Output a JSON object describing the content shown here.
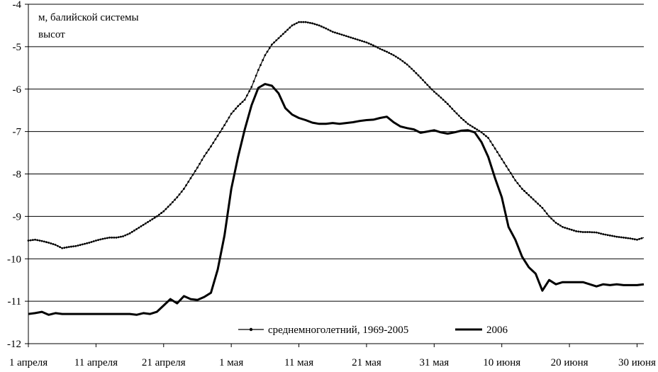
{
  "chart_data": {
    "type": "line",
    "ylabel": "м, балийской системы высот",
    "ylabel_lines": [
      "м, балийской системы",
      "высот"
    ],
    "ylim": [
      -12,
      -4
    ],
    "yticks": [
      -4,
      -5,
      -6,
      -7,
      -8,
      -9,
      -10,
      -11,
      -12
    ],
    "xlim": [
      0,
      91
    ],
    "grid": "horizontal",
    "legend_position": "bottom-right",
    "x_ticks": [
      {
        "x": 0,
        "label": "1 апреля"
      },
      {
        "x": 10,
        "label": "11 апреля"
      },
      {
        "x": 20,
        "label": "21 апреля"
      },
      {
        "x": 30,
        "label": "1 мая"
      },
      {
        "x": 40,
        "label": "11 мая"
      },
      {
        "x": 50,
        "label": "21 мая"
      },
      {
        "x": 60,
        "label": "31 мая"
      },
      {
        "x": 70,
        "label": "10 июня"
      },
      {
        "x": 80,
        "label": "20 июня"
      },
      {
        "x": 90,
        "label": "30 июня"
      }
    ],
    "series": [
      {
        "name": "среднемноголетний, 1969-2005",
        "color": "#000000",
        "marker": "dot",
        "points": [
          [
            0,
            -9.57
          ],
          [
            1,
            -9.55
          ],
          [
            2,
            -9.58
          ],
          [
            3,
            -9.62
          ],
          [
            4,
            -9.67
          ],
          [
            5,
            -9.75
          ],
          [
            6,
            -9.72
          ],
          [
            7,
            -9.7
          ],
          [
            8,
            -9.66
          ],
          [
            9,
            -9.62
          ],
          [
            10,
            -9.57
          ],
          [
            11,
            -9.53
          ],
          [
            12,
            -9.5
          ],
          [
            13,
            -9.5
          ],
          [
            14,
            -9.47
          ],
          [
            15,
            -9.4
          ],
          [
            16,
            -9.3
          ],
          [
            17,
            -9.2
          ],
          [
            18,
            -9.1
          ],
          [
            19,
            -9.0
          ],
          [
            20,
            -8.88
          ],
          [
            21,
            -8.72
          ],
          [
            22,
            -8.55
          ],
          [
            23,
            -8.35
          ],
          [
            24,
            -8.1
          ],
          [
            25,
            -7.85
          ],
          [
            26,
            -7.58
          ],
          [
            27,
            -7.35
          ],
          [
            28,
            -7.1
          ],
          [
            29,
            -6.85
          ],
          [
            30,
            -6.58
          ],
          [
            31,
            -6.4
          ],
          [
            32,
            -6.25
          ],
          [
            33,
            -5.95
          ],
          [
            34,
            -5.55
          ],
          [
            35,
            -5.2
          ],
          [
            36,
            -4.95
          ],
          [
            37,
            -4.8
          ],
          [
            38,
            -4.65
          ],
          [
            39,
            -4.5
          ],
          [
            40,
            -4.42
          ],
          [
            41,
            -4.42
          ],
          [
            42,
            -4.45
          ],
          [
            43,
            -4.5
          ],
          [
            44,
            -4.57
          ],
          [
            45,
            -4.65
          ],
          [
            46,
            -4.7
          ],
          [
            47,
            -4.75
          ],
          [
            48,
            -4.8
          ],
          [
            49,
            -4.85
          ],
          [
            50,
            -4.9
          ],
          [
            51,
            -4.97
          ],
          [
            52,
            -5.05
          ],
          [
            53,
            -5.12
          ],
          [
            54,
            -5.2
          ],
          [
            55,
            -5.3
          ],
          [
            56,
            -5.42
          ],
          [
            57,
            -5.57
          ],
          [
            58,
            -5.73
          ],
          [
            59,
            -5.9
          ],
          [
            60,
            -6.06
          ],
          [
            61,
            -6.2
          ],
          [
            62,
            -6.35
          ],
          [
            63,
            -6.52
          ],
          [
            64,
            -6.68
          ],
          [
            65,
            -6.82
          ],
          [
            66,
            -6.92
          ],
          [
            67,
            -7.02
          ],
          [
            68,
            -7.15
          ],
          [
            69,
            -7.4
          ],
          [
            70,
            -7.65
          ],
          [
            71,
            -7.9
          ],
          [
            72,
            -8.15
          ],
          [
            73,
            -8.35
          ],
          [
            74,
            -8.5
          ],
          [
            75,
            -8.65
          ],
          [
            76,
            -8.8
          ],
          [
            77,
            -9.0
          ],
          [
            78,
            -9.15
          ],
          [
            79,
            -9.25
          ],
          [
            80,
            -9.3
          ],
          [
            81,
            -9.35
          ],
          [
            82,
            -9.37
          ],
          [
            83,
            -9.37
          ],
          [
            84,
            -9.38
          ],
          [
            85,
            -9.42
          ],
          [
            86,
            -9.45
          ],
          [
            87,
            -9.48
          ],
          [
            88,
            -9.5
          ],
          [
            89,
            -9.52
          ],
          [
            90,
            -9.55
          ],
          [
            91,
            -9.5
          ]
        ]
      },
      {
        "name": "2006",
        "color": "#000000",
        "marker": "none",
        "points": [
          [
            0,
            -11.3
          ],
          [
            1,
            -11.28
          ],
          [
            2,
            -11.25
          ],
          [
            3,
            -11.32
          ],
          [
            4,
            -11.28
          ],
          [
            5,
            -11.3
          ],
          [
            6,
            -11.3
          ],
          [
            7,
            -11.3
          ],
          [
            8,
            -11.3
          ],
          [
            9,
            -11.3
          ],
          [
            10,
            -11.3
          ],
          [
            11,
            -11.3
          ],
          [
            12,
            -11.3
          ],
          [
            13,
            -11.3
          ],
          [
            14,
            -11.3
          ],
          [
            15,
            -11.3
          ],
          [
            16,
            -11.32
          ],
          [
            17,
            -11.28
          ],
          [
            18,
            -11.3
          ],
          [
            19,
            -11.25
          ],
          [
            20,
            -11.1
          ],
          [
            21,
            -10.95
          ],
          [
            22,
            -11.05
          ],
          [
            23,
            -10.88
          ],
          [
            24,
            -10.95
          ],
          [
            25,
            -10.97
          ],
          [
            26,
            -10.9
          ],
          [
            27,
            -10.8
          ],
          [
            28,
            -10.25
          ],
          [
            29,
            -9.45
          ],
          [
            30,
            -8.35
          ],
          [
            31,
            -7.6
          ],
          [
            32,
            -6.95
          ],
          [
            33,
            -6.38
          ],
          [
            34,
            -5.97
          ],
          [
            35,
            -5.88
          ],
          [
            36,
            -5.92
          ],
          [
            37,
            -6.1
          ],
          [
            38,
            -6.45
          ],
          [
            39,
            -6.6
          ],
          [
            40,
            -6.68
          ],
          [
            41,
            -6.73
          ],
          [
            42,
            -6.79
          ],
          [
            43,
            -6.82
          ],
          [
            44,
            -6.82
          ],
          [
            45,
            -6.8
          ],
          [
            46,
            -6.82
          ],
          [
            47,
            -6.8
          ],
          [
            48,
            -6.78
          ],
          [
            49,
            -6.75
          ],
          [
            50,
            -6.73
          ],
          [
            51,
            -6.72
          ],
          [
            52,
            -6.68
          ],
          [
            53,
            -6.65
          ],
          [
            54,
            -6.78
          ],
          [
            55,
            -6.88
          ],
          [
            56,
            -6.92
          ],
          [
            57,
            -6.95
          ],
          [
            58,
            -7.03
          ],
          [
            59,
            -7.0
          ],
          [
            60,
            -6.97
          ],
          [
            61,
            -7.02
          ],
          [
            62,
            -7.05
          ],
          [
            63,
            -7.02
          ],
          [
            64,
            -6.98
          ],
          [
            65,
            -6.97
          ],
          [
            66,
            -7.02
          ],
          [
            67,
            -7.25
          ],
          [
            68,
            -7.6
          ],
          [
            69,
            -8.1
          ],
          [
            70,
            -8.55
          ],
          [
            71,
            -9.25
          ],
          [
            72,
            -9.55
          ],
          [
            73,
            -9.95
          ],
          [
            74,
            -10.2
          ],
          [
            75,
            -10.35
          ],
          [
            76,
            -10.75
          ],
          [
            77,
            -10.5
          ],
          [
            78,
            -10.6
          ],
          [
            79,
            -10.55
          ],
          [
            80,
            -10.55
          ],
          [
            81,
            -10.55
          ],
          [
            82,
            -10.55
          ],
          [
            83,
            -10.6
          ],
          [
            84,
            -10.65
          ],
          [
            85,
            -10.6
          ],
          [
            86,
            -10.62
          ],
          [
            87,
            -10.6
          ],
          [
            88,
            -10.62
          ],
          [
            89,
            -10.62
          ],
          [
            90,
            -10.62
          ],
          [
            91,
            -10.6
          ]
        ]
      }
    ]
  }
}
